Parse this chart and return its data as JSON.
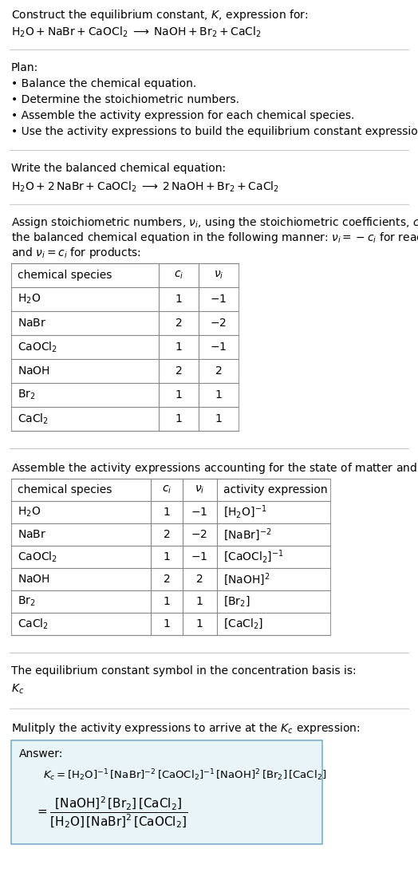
{
  "title_line1": "Construct the equilibrium constant, $K$, expression for:",
  "reaction_unbalanced": "$\\mathrm{H_2O + NaBr + CaOCl_2 \\;\\longrightarrow\\; NaOH + Br_2 + CaCl_2}$",
  "plan_header": "Plan:",
  "plan_steps": [
    "\\bullet\\; Balance the chemical equation.",
    "\\bullet\\; Determine the stoichiometric numbers.",
    "\\bullet\\; Assemble the activity expression for each chemical species.",
    "\\bullet\\; Use the activity expressions to build the equilibrium constant expression."
  ],
  "balanced_header": "Write the balanced chemical equation:",
  "reaction_balanced": "$\\mathrm{H_2O + 2\\,NaBr + CaOCl_2 \\;\\longrightarrow\\; 2\\,NaOH + Br_2 + CaCl_2}$",
  "stoich_line1": "Assign stoichiometric numbers, $\\nu_i$, using the stoichiometric coefficients, $c_i$, from",
  "stoich_line2": "the balanced chemical equation in the following manner: $\\nu_i = -c_i$ for reactants",
  "stoich_line3": "and $\\nu_i = c_i$ for products:",
  "table1_headers": [
    "chemical species",
    "$c_i$",
    "$\\nu_i$"
  ],
  "table1_rows": [
    [
      "$\\mathrm{H_2O}$",
      "1",
      "$-1$"
    ],
    [
      "$\\mathrm{NaBr}$",
      "2",
      "$-2$"
    ],
    [
      "$\\mathrm{CaOCl_2}$",
      "1",
      "$-1$"
    ],
    [
      "$\\mathrm{NaOH}$",
      "2",
      "2"
    ],
    [
      "$\\mathrm{Br_2}$",
      "1",
      "1"
    ],
    [
      "$\\mathrm{CaCl_2}$",
      "1",
      "1"
    ]
  ],
  "activity_header": "Assemble the activity expressions accounting for the state of matter and $\\nu_i$:",
  "table2_headers": [
    "chemical species",
    "$c_i$",
    "$\\nu_i$",
    "activity expression"
  ],
  "table2_rows": [
    [
      "$\\mathrm{H_2O}$",
      "1",
      "$-1$",
      "$[\\mathrm{H_2O}]^{-1}$"
    ],
    [
      "$\\mathrm{NaBr}$",
      "2",
      "$-2$",
      "$[\\mathrm{NaBr}]^{-2}$"
    ],
    [
      "$\\mathrm{CaOCl_2}$",
      "1",
      "$-1$",
      "$[\\mathrm{CaOCl_2}]^{-1}$"
    ],
    [
      "$\\mathrm{NaOH}$",
      "2",
      "2",
      "$[\\mathrm{NaOH}]^2$"
    ],
    [
      "$\\mathrm{Br_2}$",
      "1",
      "1",
      "$[\\mathrm{Br_2}]$"
    ],
    [
      "$\\mathrm{CaCl_2}$",
      "1",
      "1",
      "$[\\mathrm{CaCl_2}]$"
    ]
  ],
  "kc_header": "The equilibrium constant symbol in the concentration basis is:",
  "kc_symbol": "$K_c$",
  "multiply_header": "Mulitply the activity expressions to arrive at the $K_c$ expression:",
  "answer_label": "Answer:",
  "answer_line1": "$K_c = [\\mathrm{H_2O}]^{-1}\\,[\\mathrm{NaBr}]^{-2}\\,[\\mathrm{CaOCl_2}]^{-1}\\,[\\mathrm{NaOH}]^2\\,[\\mathrm{Br_2}]\\,[\\mathrm{CaCl_2}]$",
  "answer_eq": "$= \\dfrac{[\\mathrm{NaOH}]^2\\,[\\mathrm{Br_2}]\\,[\\mathrm{CaCl_2}]}{[\\mathrm{H_2O}]\\,[\\mathrm{NaBr}]^2\\,[\\mathrm{CaOCl_2}]}$",
  "bg_color": "#ffffff",
  "text_color": "#000000",
  "answer_box_bg": "#e8f4f8",
  "answer_box_edge": "#7aaecc",
  "sep_color": "#cccccc"
}
